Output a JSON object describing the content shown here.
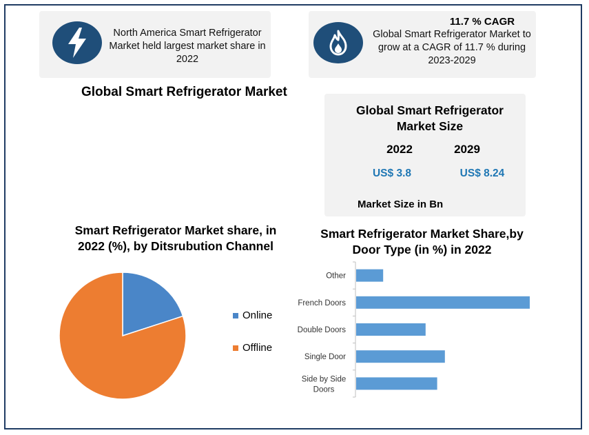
{
  "card_left": {
    "icon": "lightning-bolt-icon",
    "text": "North America Smart Refrigerator Market held largest market share in 2022"
  },
  "card_right": {
    "icon": "flame-icon",
    "headline": "11.7 % CAGR",
    "text": "Global Smart Refrigerator Market to grow at a CAGR of 11.7 % during 2023-2029"
  },
  "main_title": "Global Smart Refrigerator Market",
  "market_size": {
    "title": "Global Smart Refrigerator Market Size",
    "year_a": "2022",
    "year_b": "2029",
    "value_a": "US$ 3.8",
    "value_b": "US$ 8.24",
    "note": "Market Size in Bn"
  },
  "colors": {
    "accent_blue": "#1f4e79",
    "online": "#4a86c8",
    "offline": "#ed7d31",
    "bar": "#5b9bd5",
    "money": "#1f77b4"
  },
  "chart_data": [
    {
      "type": "pie",
      "title": "Smart Refrigerator Market share, in 2022 (%), by Ditsrubution Channel",
      "labels": [
        "Online",
        "Offline"
      ],
      "values": [
        20,
        80
      ],
      "legend": "right"
    },
    {
      "type": "bar",
      "orientation": "horizontal",
      "title": "Smart Refrigerator Market Share,by Door Type (in %) in 2022",
      "categories": [
        "Other",
        "French Doors",
        "Double Doors",
        "Single Door",
        "Side by Side Doors"
      ],
      "values": [
        7,
        45,
        18,
        23,
        21
      ],
      "xlim": [
        0,
        45
      ],
      "grid": false
    }
  ]
}
